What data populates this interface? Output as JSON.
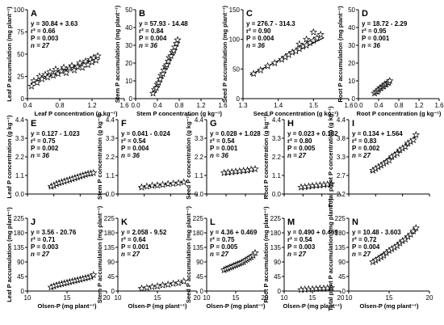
{
  "figure": {
    "marker": "star",
    "colors": {
      "axis": "#000000",
      "marker_fill": "#ffffff",
      "marker_stroke": "#000000",
      "fit_line": "#000000"
    }
  },
  "chart_data": [
    {
      "id": "A",
      "type": "scatter",
      "xlabel": "Leaf P concentration (g kg⁻¹)",
      "ylabel": "Leaf P accumulation (mg plant⁻¹)",
      "xlim": [
        0.4,
        1.6
      ],
      "ylim": [
        0,
        100
      ],
      "xticks": [
        "0.4",
        "0.8",
        "1.2",
        "1.6"
      ],
      "yticks": [
        "0",
        "25",
        "50",
        "75",
        "100"
      ],
      "annotations": [
        "y = 30.84 + 3.63",
        "r² = 0.66",
        "P = 0.003",
        "n = 27"
      ],
      "fit": {
        "x": [
          0.44,
          1.28
        ],
        "y": [
          17,
          47
        ]
      },
      "x": [
        0.45,
        0.48,
        0.52,
        0.55,
        0.58,
        0.62,
        0.65,
        0.68,
        0.72,
        0.75,
        0.78,
        0.82,
        0.85,
        0.88,
        0.92,
        0.95,
        0.98,
        1.02,
        1.05,
        1.08,
        1.12,
        1.15,
        1.18,
        1.2,
        1.22,
        1.25,
        1.27
      ],
      "y": [
        14,
        20,
        18,
        25,
        22,
        27,
        24,
        30,
        26,
        33,
        28,
        31,
        35,
        29,
        34,
        37,
        32,
        36,
        40,
        35,
        42,
        38,
        44,
        41,
        46,
        43,
        48
      ]
    },
    {
      "id": "B",
      "type": "scatter",
      "xlabel": "Stem P concentration (g kg⁻¹)",
      "ylabel": "Stem P accumulation (mg plant⁻¹)",
      "xlim": [
        0,
        1.6
      ],
      "ylim": [
        0,
        50
      ],
      "xticks": [
        "0.0",
        "0.4",
        "0.8",
        "1.2",
        "1.6"
      ],
      "yticks": [
        "0",
        "10",
        "20",
        "30",
        "40",
        "50"
      ],
      "annotations": [
        "y = 57.93 - 14.48",
        "r² = 0.84",
        "P = 0.004",
        "n = 36"
      ],
      "fit": {
        "x": [
          0.3,
          0.78
        ],
        "y": [
          3,
          31
        ]
      },
      "x": [
        0.32,
        0.35,
        0.38,
        0.4,
        0.42,
        0.45,
        0.47,
        0.5,
        0.52,
        0.55,
        0.57,
        0.6,
        0.62,
        0.65,
        0.68,
        0.7,
        0.72,
        0.75,
        0.77
      ],
      "y": [
        3,
        5,
        6,
        8,
        9,
        11,
        13,
        14,
        16,
        18,
        19,
        21,
        23,
        24,
        26,
        27,
        29,
        31,
        33
      ]
    },
    {
      "id": "C",
      "type": "scatter",
      "xlabel": "Seed P concentration (g kg⁻¹)",
      "ylabel": "Seed P accumulation (mg plant⁻¹)",
      "xlim": [
        1.3,
        1.6
      ],
      "ylim": [
        0,
        150
      ],
      "xticks": [
        "1.3",
        "1.4",
        "1.5",
        "1.6"
      ],
      "yticks": [
        "0",
        "50",
        "100",
        "150"
      ],
      "annotations": [
        "y = 276.7 - 314.3",
        "r² = 0.90",
        "P = 0.004",
        "n = 36"
      ],
      "fit": {
        "x": [
          1.32,
          1.53
        ],
        "y": [
          40,
          103
        ]
      },
      "x": [
        1.33,
        1.35,
        1.37,
        1.39,
        1.41,
        1.42,
        1.43,
        1.44,
        1.45,
        1.46,
        1.47,
        1.48,
        1.49,
        1.5,
        1.51,
        1.52,
        1.5,
        1.48,
        1.46
      ],
      "y": [
        42,
        48,
        55,
        60,
        66,
        70,
        74,
        78,
        80,
        84,
        88,
        90,
        94,
        98,
        102,
        108,
        112,
        100,
        92
      ]
    },
    {
      "id": "D",
      "type": "scatter",
      "xlabel": "Root P concentration (g kg⁻¹)",
      "ylabel": "Root P accumulation (mg plant⁻¹)",
      "xlim": [
        0,
        1.6
      ],
      "ylim": [
        0,
        50
      ],
      "xticks": [
        "0.0",
        "0.4",
        "0.8",
        "1.2",
        "1.6"
      ],
      "yticks": [
        "0",
        "10",
        "20",
        "30",
        "40",
        "50"
      ],
      "annotations": [
        "y = 18.72 - 2.29",
        "r² = 0.95",
        "P = 0.001",
        "n = 36"
      ],
      "fit": {
        "x": [
          0.3,
          0.65
        ],
        "y": [
          3,
          10
        ]
      },
      "x": [
        0.32,
        0.35,
        0.38,
        0.4,
        0.43,
        0.45,
        0.48,
        0.5,
        0.52,
        0.55,
        0.58,
        0.6,
        0.62
      ],
      "y": [
        3,
        4,
        4,
        5,
        6,
        6,
        7,
        7,
        8,
        8,
        9,
        9,
        10
      ]
    },
    {
      "id": "E",
      "type": "scatter",
      "xlabel": "",
      "ylabel": "Leaf P concentration (g kg⁻¹)",
      "xlim": [
        5,
        20
      ],
      "ylim": [
        0,
        4.4
      ],
      "xticks": [],
      "yticks": [
        "0.0",
        "1.1",
        "2.2",
        "3.3",
        "4.4"
      ],
      "annotations": [
        "y = 0.127 - 1.023",
        "r² = 0.75",
        "P = 0.002",
        "n = 36"
      ],
      "fit": {
        "x": [
          9,
          17.5
        ],
        "y": [
          0.4,
          1.3
        ]
      },
      "x": [
        9.5,
        10,
        10.5,
        11,
        11.5,
        12,
        12.5,
        13,
        13.5,
        14,
        14.5,
        15,
        15.5,
        16,
        16.5,
        17,
        17.5
      ],
      "y": [
        0.45,
        0.5,
        0.6,
        0.65,
        0.7,
        0.75,
        0.8,
        0.85,
        0.9,
        0.95,
        1.0,
        1.05,
        1.1,
        1.15,
        1.2,
        1.22,
        1.25
      ]
    },
    {
      "id": "F",
      "type": "scatter",
      "xlabel": "",
      "ylabel": "Stem P concentration (g kg⁻¹)",
      "xlim": [
        5,
        20
      ],
      "ylim": [
        0,
        4.4
      ],
      "xticks": [],
      "yticks": [
        "0.0",
        "1.1",
        "2.2",
        "3.3",
        "4.4"
      ],
      "annotations": [
        "y = 0.041 - 0.024",
        "r² = 0.54",
        "P = 0.004",
        "n = 36"
      ],
      "fit": {
        "x": [
          9,
          17.5
        ],
        "y": [
          0.38,
          0.7
        ]
      },
      "x": [
        9.5,
        10.5,
        11.5,
        12.5,
        13.5,
        14.5,
        15.5,
        16.5,
        17.5
      ],
      "y": [
        0.4,
        0.45,
        0.5,
        0.52,
        0.55,
        0.6,
        0.62,
        0.65,
        0.7
      ]
    },
    {
      "id": "G",
      "type": "scatter",
      "xlabel": "",
      "ylabel": "Seed P concentration (g kg⁻¹)",
      "xlim": [
        5,
        20
      ],
      "ylim": [
        0,
        4.4
      ],
      "xticks": [],
      "yticks": [
        "0.0",
        "1.1",
        "2.2",
        "3.3",
        "4.4"
      ],
      "annotations": [
        "y = 0.028 + 1.028",
        "r² = 0.54",
        "P = 0.001",
        "n = 36"
      ],
      "fit": {
        "x": [
          9,
          17.5
        ],
        "y": [
          1.25,
          1.5
        ]
      },
      "x": [
        9.5,
        10.5,
        11.5,
        12.5,
        13.5,
        14.5,
        15.5,
        16.5,
        17.5
      ],
      "y": [
        1.25,
        1.28,
        1.3,
        1.33,
        1.35,
        1.38,
        1.4,
        1.45,
        1.48
      ]
    },
    {
      "id": "H",
      "type": "scatter",
      "xlabel": "",
      "ylabel": "Root P concentration (g kg⁻¹)",
      "xlim": [
        5,
        20
      ],
      "ylim": [
        0,
        4.4
      ],
      "xticks": [],
      "yticks": [
        "0.0",
        "1.1",
        "2.2",
        "3.3",
        "4.4"
      ],
      "annotations": [
        "y = 0.023 + 0.182",
        "r² = 0.80",
        "P = 0.005",
        "n = 27"
      ],
      "fit": {
        "x": [
          9,
          17.5
        ],
        "y": [
          0.38,
          0.58
        ]
      },
      "x": [
        9.5,
        10.5,
        11.5,
        12.5,
        13.5,
        14.5,
        15.5,
        16.5,
        17.5
      ],
      "y": [
        0.4,
        0.42,
        0.45,
        0.48,
        0.5,
        0.52,
        0.55,
        0.57,
        0.6
      ]
    },
    {
      "id": "I",
      "type": "scatter",
      "xlabel": "",
      "ylabel": "Total plant P concentration (g kg⁻¹)",
      "xlim": [
        5,
        20
      ],
      "ylim": [
        2.2,
        4.4
      ],
      "xticks": [],
      "yticks": [
        "2.2",
        "2.7",
        "3.3",
        "3.8",
        "4.4"
      ],
      "annotations": [
        "y = 0.134 + 1.564",
        "r² = 0.83",
        "P = 0.002",
        "n = 27"
      ],
      "fit": {
        "x": [
          9,
          17.5
        ],
        "y": [
          2.85,
          3.9
        ]
      },
      "x": [
        9.5,
        10,
        10.5,
        11,
        11.5,
        12,
        12.5,
        13,
        13.5,
        14,
        14.5,
        15,
        15.5,
        16,
        16.5,
        17,
        17.5
      ],
      "y": [
        2.9,
        2.95,
        3.0,
        3.05,
        3.1,
        3.15,
        3.2,
        3.3,
        3.35,
        3.4,
        3.5,
        3.55,
        3.6,
        3.7,
        3.75,
        3.8,
        3.95
      ]
    },
    {
      "id": "J",
      "type": "scatter",
      "xlabel": "Olsen-P (mg plant⁻¹)",
      "ylabel": "Leaf P accumulation (mg plant⁻¹)",
      "xlim": [
        5,
        20
      ],
      "ylim": [
        0,
        225
      ],
      "xticks": [
        "10",
        "15",
        "20"
      ],
      "yticks": [
        "0",
        "45",
        "90",
        "135",
        "180",
        "225"
      ],
      "annotations": [
        "y = 3.56 - 20.76",
        "r² = 0.71",
        "P = 0.003",
        "n = 27"
      ],
      "fit": {
        "x": [
          9,
          17.5
        ],
        "y": [
          12,
          42
        ]
      },
      "x": [
        9.5,
        10,
        10.5,
        11,
        11.5,
        12,
        12.5,
        13,
        13.5,
        14,
        14.5,
        15,
        15.5,
        16,
        16.5,
        17,
        17.5
      ],
      "y": [
        12,
        15,
        18,
        20,
        22,
        24,
        26,
        28,
        30,
        32,
        34,
        36,
        38,
        40,
        42,
        44,
        50
      ]
    },
    {
      "id": "K",
      "type": "scatter",
      "xlabel": "Olsen-P (mg plant⁻¹)",
      "ylabel": "Stem P accumulation (mg plant⁻¹)",
      "xlim": [
        5,
        20
      ],
      "ylim": [
        0,
        225
      ],
      "xticks": [
        "10",
        "15",
        "20"
      ],
      "yticks": [
        "0",
        "45",
        "90",
        "135",
        "180",
        "225"
      ],
      "annotations": [
        "y = 2.058 - 9.52",
        "r² = 0.64",
        "P = 0.001",
        "n = 27"
      ],
      "fit": {
        "x": [
          9,
          17.5
        ],
        "y": [
          8,
          28
        ]
      },
      "x": [
        9.5,
        10.5,
        11.5,
        12.5,
        13.5,
        14.5,
        15.5,
        16.5,
        17.5
      ],
      "y": [
        8,
        10,
        13,
        15,
        18,
        20,
        23,
        25,
        30
      ]
    },
    {
      "id": "L",
      "type": "scatter",
      "xlabel": "Olsen-P (mg plant⁻¹)",
      "ylabel": "Seed P accumulation (mg plant⁻¹)",
      "xlim": [
        5,
        20
      ],
      "ylim": [
        0,
        225
      ],
      "xticks": [
        "10",
        "15",
        "20"
      ],
      "yticks": [
        "0",
        "45",
        "90",
        "135",
        "180",
        "225"
      ],
      "annotations": [
        "y = 4.36 + 0.469",
        "r² = 0.75",
        "P = 0.005",
        "n = 27"
      ],
      "fit": {
        "x": [
          9,
          17.5
        ],
        "y": [
          65,
          110
        ]
      },
      "x": [
        9.5,
        10,
        10.5,
        11,
        11.5,
        12,
        12.5,
        13,
        13.5,
        14,
        14.5,
        15,
        15.5,
        16,
        16.5,
        17,
        17.5
      ],
      "y": [
        65,
        68,
        70,
        73,
        75,
        78,
        80,
        83,
        85,
        88,
        90,
        95,
        98,
        102,
        105,
        110,
        118
      ]
    },
    {
      "id": "M",
      "type": "scatter",
      "xlabel": "Olsen-P (mg plant⁻¹)",
      "ylabel": "Root P accumulation (mg plant⁻¹)",
      "xlim": [
        5,
        20
      ],
      "ylim": [
        0,
        225
      ],
      "xticks": [
        "10",
        "15",
        "20"
      ],
      "yticks": [
        "0",
        "45",
        "90",
        "135",
        "180",
        "225"
      ],
      "annotations": [
        "y = 0.490 + 0.469",
        "r² = 0.54",
        "P = 0.003",
        "n = 27"
      ],
      "fit": {
        "x": [
          9,
          17.5
        ],
        "y": [
          4,
          10
        ]
      },
      "x": [
        9.5,
        10.5,
        11.5,
        12.5,
        13.5,
        14.5,
        15.5,
        16.5,
        17.5
      ],
      "y": [
        4,
        5,
        6,
        6,
        7,
        8,
        8,
        9,
        10
      ]
    },
    {
      "id": "N",
      "type": "scatter",
      "xlabel": "Olsen-P (mg plant⁻¹)",
      "ylabel": "Total plant P accumulation (mg plant⁻¹)",
      "xlim": [
        5,
        20
      ],
      "ylim": [
        0,
        225
      ],
      "xticks": [
        "10",
        "15",
        "20"
      ],
      "yticks": [
        "0",
        "45",
        "90",
        "135",
        "180",
        "225"
      ],
      "annotations": [
        "y = 10.48 - 3.603",
        "r² = 0.72",
        "P = 0.004",
        "n = 27"
      ],
      "fit": {
        "x": [
          9,
          17.5
        ],
        "y": [
          90,
          185
        ]
      },
      "x": [
        9.5,
        10,
        10.5,
        11,
        11.5,
        12,
        12.5,
        13,
        13.5,
        14,
        14.5,
        15,
        15.5,
        16,
        16.5,
        17,
        17.5
      ],
      "y": [
        90,
        95,
        100,
        105,
        110,
        118,
        125,
        130,
        135,
        140,
        148,
        155,
        160,
        168,
        175,
        185,
        195
      ]
    }
  ]
}
